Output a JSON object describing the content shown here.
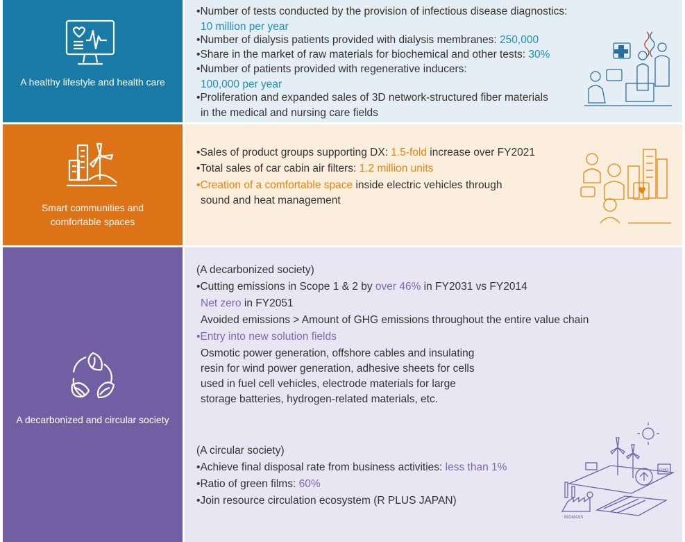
{
  "colors": {
    "health": "#1a7aa6",
    "health_panel": "#e5edf5",
    "smart": "#dc7417",
    "smart_panel": "#fbeedc",
    "decarb": "#705fa3",
    "decarb_panel": "#e8e6f2"
  },
  "health": {
    "label": "A healthy lifestyle and health care",
    "icon": "health-monitor-icon",
    "items": [
      {
        "bullet": "•",
        "text": "Number of tests conducted by the provision of infectious disease diagnostics:",
        "highlight": "10 million per year"
      },
      {
        "bullet": "•",
        "text": "Number of dialysis patients provided with dialysis membranes: ",
        "highlight": "250,000"
      },
      {
        "bullet": "•",
        "text": "Share in the market of raw materials for biochemical and other tests: ",
        "highlight": "30%"
      },
      {
        "bullet": "•",
        "text": "Number of patients provided with regenerative inducers:",
        "highlight": "100,000 per year"
      },
      {
        "bullet": "•",
        "text": "Proliferation and expanded sales of 3D network-structured fiber materials",
        "cont": "in the medical and nursing care fields"
      }
    ]
  },
  "smart": {
    "label": "Smart communities and comfortable spaces",
    "icon": "smart-city-icon",
    "items": [
      {
        "bullet": "•",
        "text1": "Sales of product groups supporting DX: ",
        "highlight": "1.5-fold",
        "text2": " increase over FY2021"
      },
      {
        "bullet": "•",
        "text1": "Total sales of car cabin air filters: ",
        "highlight": "1.2 million units",
        "text2": ""
      },
      {
        "bullet": "•",
        "text1": "",
        "highlight": "Creation of a comfortable space",
        "text2": " inside electric vehicles through",
        "cont": "sound and heat management"
      }
    ]
  },
  "decarb": {
    "label": "A decarbonized and circular society",
    "icon": "recycle-leaves-icon",
    "sub1": "(A decarbonized society)",
    "scope_pre": "Cutting emissions in Scope 1 & 2 by ",
    "scope_hl": "over 46%",
    "scope_post": " in FY2031 vs FY2014",
    "netzero_hl": "Net zero",
    "netzero_post": " in FY2051",
    "avoided": "Avoided emissions > Amount of GHG emissions throughout the entire value chain",
    "entry_hl": "Entry into new solution fields",
    "entry_lines": [
      "Osmotic power generation, offshore cables and insulating",
      "resin for wind power generation, adhesive sheets for cells",
      "used in fuel cell vehicles, electrode materials for large",
      "storage batteries, hydrogen-related materials, etc."
    ],
    "sub2": "(A circular  society)",
    "disposal_pre": "Achieve final disposal rate from business activities: ",
    "disposal_hl": "less than 1%",
    "green_pre": "Ratio of green films: ",
    "green_hl": "60%",
    "rplus": "Join resource circulation ecosystem (R PLUS JAPAN)",
    "illus_labels": {
      "biomass": "BIOMASS",
      "ghg": "GHG"
    }
  }
}
